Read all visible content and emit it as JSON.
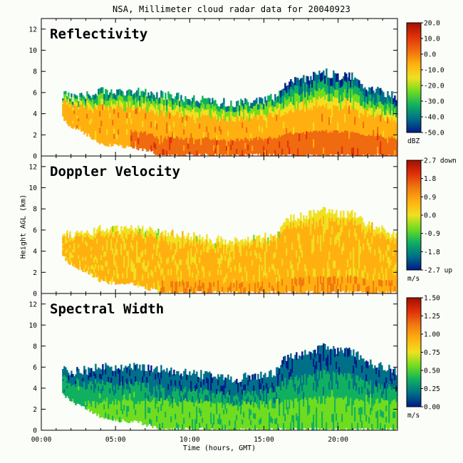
{
  "page": {
    "title": "NSA, Millimeter cloud radar data for 20040923",
    "xlabel": "Time (hours, GMT)",
    "ylabel": "Height AGL (km)",
    "background": "#fbfdf9"
  },
  "chart_data": [
    {
      "type": "heatmap",
      "panel_title": "Reflectivity",
      "x_ticks": [
        "00:00",
        "05:00",
        "10:00",
        "15:00",
        "20:00"
      ],
      "x_tick_values": [
        0,
        5,
        10,
        15,
        20
      ],
      "xlim": [
        0,
        24
      ],
      "ylim": [
        0,
        13
      ],
      "y_ticks": [
        0,
        2,
        4,
        6,
        8,
        10,
        12
      ],
      "colorbar": {
        "ticks": [
          "20.0",
          "10.0",
          "0.0",
          "-10.0",
          "-20.0",
          "-30.0",
          "-40.0",
          "-50.0"
        ],
        "unit": "dBZ",
        "colors_top_to_bottom": [
          "#a01000",
          "#e0300a",
          "#f06a10",
          "#ffb010",
          "#f0e020",
          "#70dc20",
          "#10b060",
          "#007088",
          "#001a88"
        ]
      },
      "cloud": {
        "times_h": [
          1.4,
          2,
          3,
          4,
          5,
          6,
          7,
          8,
          9,
          10,
          11,
          12,
          13,
          14,
          15,
          15.8,
          16.5,
          17,
          18,
          19,
          20,
          21,
          22,
          23,
          24
        ],
        "top_km": [
          5.9,
          5.5,
          5.7,
          6.1,
          6.0,
          6.1,
          6.0,
          5.8,
          5.6,
          5.5,
          5.2,
          5.1,
          4.9,
          5.1,
          5.3,
          5.6,
          7.0,
          7.1,
          7.4,
          7.9,
          7.6,
          7.5,
          6.4,
          6.0,
          5.5
        ],
        "base_km": [
          3.5,
          2.6,
          2.0,
          1.1,
          0.9,
          0.8,
          0.5,
          0.0,
          0.0,
          0.0,
          0.0,
          0.0,
          0.0,
          0.0,
          0.0,
          0.0,
          0.0,
          0.0,
          0.0,
          0.0,
          0.0,
          0.0,
          0.0,
          0.0,
          0.0
        ]
      }
    },
    {
      "type": "heatmap",
      "panel_title": "Doppler Velocity",
      "x_ticks": [
        "00:00",
        "05:00",
        "10:00",
        "15:00",
        "20:00"
      ],
      "x_tick_values": [
        0,
        5,
        10,
        15,
        20
      ],
      "xlim": [
        0,
        24
      ],
      "ylim": [
        0,
        13
      ],
      "y_ticks": [
        0,
        2,
        4,
        6,
        8,
        10,
        12
      ],
      "colorbar": {
        "ticks": [
          "2.7 down",
          "1.8",
          "0.9",
          "0.0",
          "-0.9",
          "-1.8",
          "-2.7 up"
        ],
        "unit": "m/s",
        "colors_top_to_bottom": [
          "#a01000",
          "#e0300a",
          "#f07a10",
          "#ffb010",
          "#f0e020",
          "#70dc20",
          "#10b060",
          "#007088",
          "#001a88"
        ]
      },
      "cloud": {
        "times_h": [
          1.4,
          2,
          3,
          4,
          5,
          6,
          7,
          8,
          9,
          10,
          11,
          12,
          13,
          14,
          15,
          15.8,
          16.5,
          17,
          18,
          19,
          20,
          21,
          22,
          23,
          24
        ],
        "top_km": [
          5.9,
          5.5,
          5.7,
          6.1,
          6.0,
          6.1,
          6.0,
          5.8,
          5.6,
          5.5,
          5.2,
          5.1,
          4.9,
          5.1,
          5.3,
          5.6,
          7.0,
          7.1,
          7.4,
          7.9,
          7.6,
          7.5,
          6.4,
          6.0,
          5.5
        ],
        "base_km": [
          3.5,
          2.6,
          2.0,
          1.1,
          0.9,
          0.8,
          0.5,
          0.0,
          0.0,
          0.0,
          0.0,
          0.0,
          0.0,
          0.0,
          0.0,
          0.0,
          0.0,
          0.0,
          0.0,
          0.0,
          0.0,
          0.0,
          0.0,
          0.0,
          0.0
        ]
      }
    },
    {
      "type": "heatmap",
      "panel_title": "Spectral Width",
      "x_ticks": [
        "00:00",
        "05:00",
        "10:00",
        "15:00",
        "20:00"
      ],
      "x_tick_values": [
        0,
        5,
        10,
        15,
        20
      ],
      "xlim": [
        0,
        24
      ],
      "ylim": [
        0,
        13
      ],
      "y_ticks": [
        0,
        2,
        4,
        6,
        8,
        10,
        12
      ],
      "colorbar": {
        "ticks": [
          "1.50",
          "1.25",
          "1.00",
          "0.75",
          "0.50",
          "0.25",
          "0.00"
        ],
        "unit": "m/s",
        "colors_top_to_bottom": [
          "#a01000",
          "#e0300a",
          "#f07a10",
          "#ffb010",
          "#f0e020",
          "#70dc20",
          "#10b060",
          "#007088",
          "#001a88"
        ]
      },
      "cloud": {
        "times_h": [
          1.4,
          2,
          3,
          4,
          5,
          6,
          7,
          8,
          9,
          10,
          11,
          12,
          13,
          14,
          15,
          15.8,
          16.5,
          17,
          18,
          19,
          20,
          21,
          22,
          23,
          24
        ],
        "top_km": [
          5.9,
          5.5,
          5.7,
          6.1,
          6.0,
          6.1,
          6.0,
          5.8,
          5.6,
          5.5,
          5.2,
          5.1,
          4.9,
          5.1,
          5.3,
          5.6,
          7.0,
          7.1,
          7.4,
          7.9,
          7.6,
          7.5,
          6.4,
          6.0,
          5.5
        ],
        "base_km": [
          3.5,
          2.6,
          2.0,
          1.1,
          0.9,
          0.8,
          0.5,
          0.0,
          0.0,
          0.0,
          0.0,
          0.0,
          0.0,
          0.0,
          0.0,
          0.0,
          0.0,
          0.0,
          0.0,
          0.0,
          0.0,
          0.0,
          0.0,
          0.0,
          0.0
        ]
      }
    }
  ]
}
